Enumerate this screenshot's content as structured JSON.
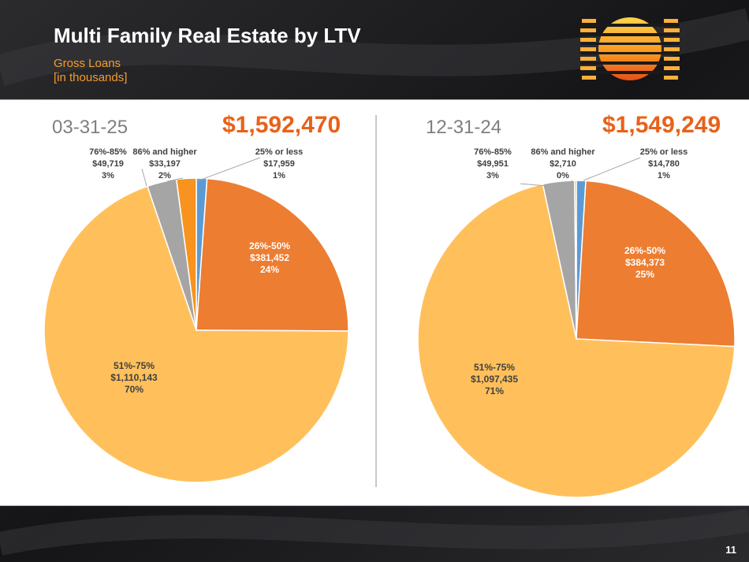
{
  "header": {
    "title": "Multi Family Real Estate by LTV",
    "subtitle_line1": "Gross Loans",
    "subtitle_line2": "[in thousands]",
    "page_number": "11"
  },
  "colors": {
    "c25_or_less": "#5b9bd5",
    "c26_50": "#ed7d31",
    "c51_75": "#ffc05c",
    "c76_85": "#a5a5a5",
    "c86_higher": "#f7931e",
    "accent": "#e8611a"
  },
  "chart_data": [
    {
      "type": "pie",
      "title": "03-31-25",
      "total": "$1,592,470",
      "slices": [
        {
          "label": "25% or less",
          "amount": "$17,959",
          "value": 17959,
          "percent": "1%",
          "color_key": "c25_or_less"
        },
        {
          "label": "26%-50%",
          "amount": "$381,452",
          "value": 381452,
          "percent": "24%",
          "color_key": "c26_50"
        },
        {
          "label": "51%-75%",
          "amount": "$1,110,143",
          "value": 1110143,
          "percent": "70%",
          "color_key": "c51_75"
        },
        {
          "label": "76%-85%",
          "amount": "$49,719",
          "value": 49719,
          "percent": "3%",
          "color_key": "c76_85"
        },
        {
          "label": "86% and higher",
          "amount": "$33,197",
          "value": 33197,
          "percent": "2%",
          "color_key": "c86_higher"
        }
      ]
    },
    {
      "type": "pie",
      "title": "12-31-24",
      "total": "$1,549,249",
      "slices": [
        {
          "label": "25% or less",
          "amount": "$14,780",
          "value": 14780,
          "percent": "1%",
          "color_key": "c25_or_less"
        },
        {
          "label": "26%-50%",
          "amount": "$384,373",
          "value": 384373,
          "percent": "25%",
          "color_key": "c26_50"
        },
        {
          "label": "51%-75%",
          "amount": "$1,097,435",
          "value": 1097435,
          "percent": "71%",
          "color_key": "c51_75"
        },
        {
          "label": "76%-85%",
          "amount": "$49,951",
          "value": 49951,
          "percent": "3%",
          "color_key": "c76_85"
        },
        {
          "label": "86% and higher",
          "amount": "$2,710",
          "value": 2710,
          "percent": "0%",
          "color_key": "c86_higher"
        }
      ]
    }
  ]
}
